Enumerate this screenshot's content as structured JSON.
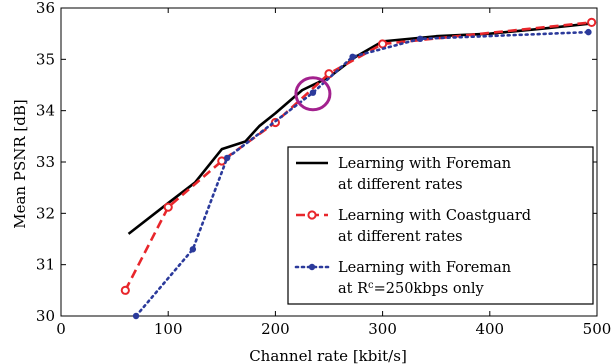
{
  "chart_data": {
    "type": "line",
    "title": "",
    "xlabel": "Channel rate [kbit/s]",
    "ylabel": "Mean PSNR [dB]",
    "xlim": [
      0,
      500
    ],
    "ylim": [
      30,
      36
    ],
    "xticks": [
      0,
      100,
      200,
      300,
      400,
      500
    ],
    "yticks": [
      30,
      31,
      32,
      33,
      34,
      35,
      36
    ],
    "grid": false,
    "legend_position": "bottom-right",
    "series": [
      {
        "name": "Learning with Foreman at different rates",
        "legend_lines": [
          "Learning with Foreman",
          "at different rates"
        ],
        "color": "#000000",
        "style": "solid",
        "marker": "none",
        "x": [
          63,
          100,
          125,
          150,
          172,
          185,
          200,
          225,
          250,
          275,
          300,
          350,
          400,
          450,
          495
        ],
        "y": [
          31.6,
          32.2,
          32.6,
          33.25,
          33.4,
          33.7,
          33.95,
          34.4,
          34.65,
          35.05,
          35.35,
          35.45,
          35.5,
          35.6,
          35.7
        ]
      },
      {
        "name": "Learning with Coastguard at different rates",
        "legend_lines": [
          "Learning with Coastguard",
          "at different rates"
        ],
        "color": "#e8262b",
        "style": "dashed",
        "marker": "open-circle",
        "x": [
          60,
          100,
          150,
          200,
          250,
          300,
          495
        ],
        "y": [
          30.5,
          32.12,
          33.02,
          33.77,
          34.72,
          35.3,
          35.72
        ]
      },
      {
        "name": "Learning with Foreman at Rc=250kbps only",
        "legend_lines": [
          "Learning with Foreman",
          "at R",
          "c",
          "=250kbps only"
        ],
        "color": "#2b3a9b",
        "style": "dotted",
        "marker": "filled-dot",
        "x": [
          70,
          123,
          155,
          235,
          272,
          335,
          492
        ],
        "y": [
          30.0,
          31.3,
          33.08,
          34.35,
          35.05,
          35.4,
          35.53
        ]
      }
    ],
    "annotations": [
      {
        "type": "ellipse",
        "x": 235,
        "y": 34.33,
        "color": "#a3218e"
      }
    ]
  }
}
